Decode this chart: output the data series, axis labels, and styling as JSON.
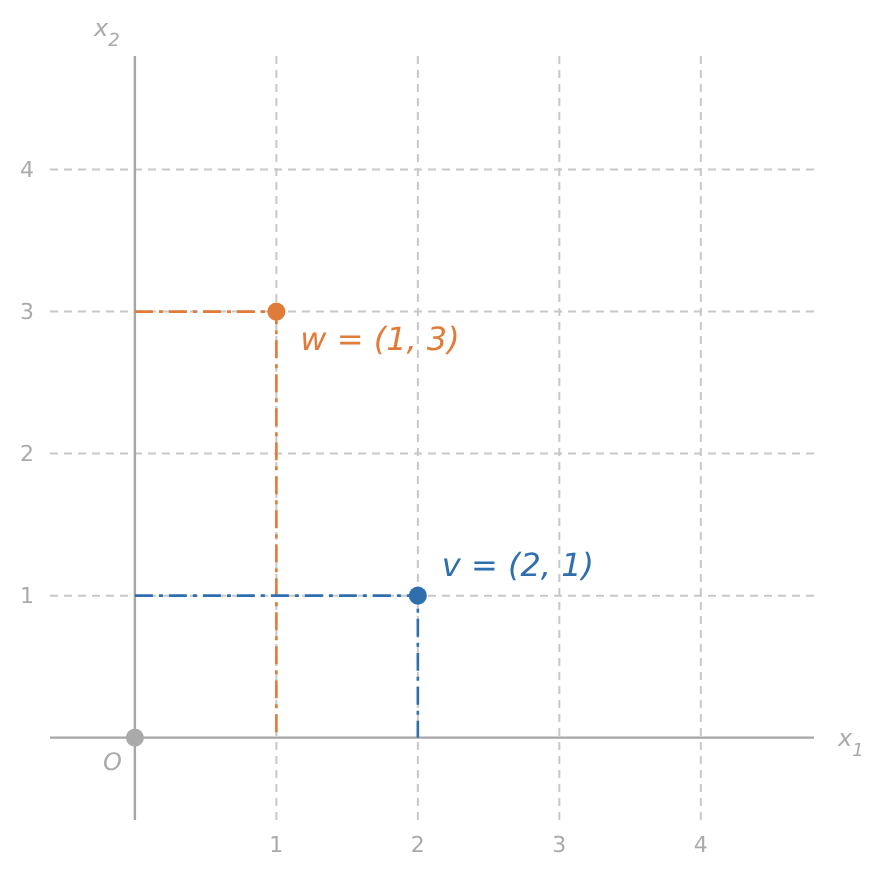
{
  "chart_data": {
    "type": "scatter",
    "xlabel": "x$_{1}$",
    "ylabel": "x$_{2}$",
    "xlim": [
      -0.6,
      4.8
    ],
    "ylim": [
      -0.58,
      4.8
    ],
    "xticks": [
      1,
      2,
      3,
      4
    ],
    "yticks": [
      1,
      2,
      3,
      4
    ],
    "grid": true,
    "series": [
      {
        "type": "line",
        "color": "#e07b39",
        "x": [
          0,
          1,
          1
        ],
        "values": [
          3,
          3,
          0
        ],
        "line_style": "dashed",
        "marker": "none"
      },
      {
        "type": "line",
        "color": "#2f6fad",
        "x": [
          0,
          2,
          2
        ],
        "values": [
          1,
          1,
          0
        ],
        "line_style": "dashed",
        "marker": "none"
      },
      {
        "color": "#e07b39",
        "x": [
          1
        ],
        "values": [
          3
        ],
        "marker": "circle"
      },
      {
        "color": "#2f6fad",
        "x": [
          2
        ],
        "values": [
          1
        ],
        "marker": "circle"
      },
      {
        "color": "#aaaaaa",
        "x": [
          0
        ],
        "values": [
          0
        ],
        "marker": "circle"
      }
    ],
    "annotations": [
      {
        "text": "w = (1, 3)",
        "x": 1,
        "y": 3
      },
      {
        "text": "v = (2, 1)",
        "x": 2,
        "y": 1
      },
      {
        "text": "O",
        "x": 0,
        "y": 0
      }
    ]
  }
}
